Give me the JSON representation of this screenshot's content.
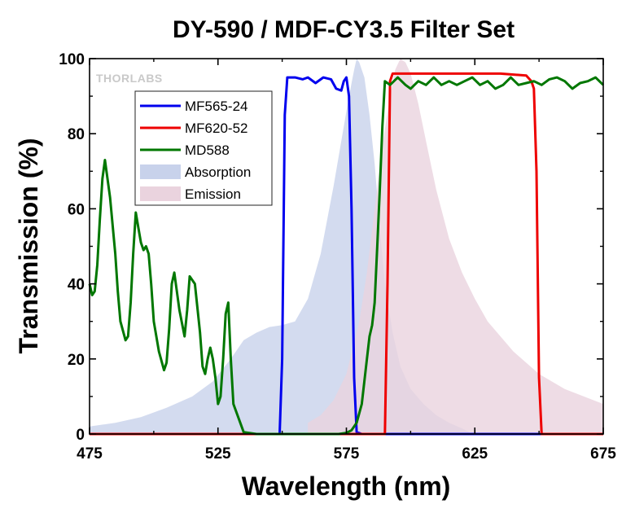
{
  "chart_data": {
    "type": "line",
    "title": "DY-590 / MDF-CY3.5 Filter Set",
    "xlabel": "Wavelength (nm)",
    "ylabel": "Transmission (%)",
    "xlim": [
      475,
      675
    ],
    "ylim": [
      0,
      100
    ],
    "xticks": [
      475,
      525,
      575,
      625,
      675
    ],
    "xtick_labels": [
      "475",
      "525",
      "575",
      "625",
      "675"
    ],
    "yticks": [
      0,
      20,
      40,
      60,
      80,
      100
    ],
    "ytick_labels": [
      "0",
      "20",
      "40",
      "60",
      "80",
      "100"
    ],
    "grid": false,
    "legend_position": "upper-left",
    "logo": "THORLABS",
    "series": [
      {
        "name": "MF565-24",
        "kind": "line",
        "color": "#0000ee",
        "x": [
          475,
          549,
          550,
          551,
          552,
          555,
          558,
          560,
          563,
          566,
          569,
          571,
          573,
          574,
          575,
          576,
          577,
          578,
          579,
          581,
          675
        ],
        "y": [
          0,
          0,
          20,
          85,
          95,
          95,
          94.5,
          95,
          93.5,
          95,
          94.5,
          92,
          91.5,
          94,
          95,
          90,
          60,
          15,
          0.5,
          0,
          0
        ]
      },
      {
        "name": "MF620-52",
        "kind": "line",
        "color": "#ee0000",
        "x": [
          475,
          590,
          591,
          592,
          593,
          595,
          605,
          615,
          625,
          635,
          645,
          647,
          648,
          649,
          650,
          651,
          675
        ],
        "y": [
          0,
          0,
          40,
          94,
          96,
          96,
          96,
          96,
          96,
          96,
          95.5,
          94,
          92,
          70,
          15,
          0,
          0
        ]
      },
      {
        "name": "MD588",
        "kind": "line",
        "color": "#007700",
        "x": [
          475,
          476,
          477,
          478,
          479,
          480,
          481,
          483,
          485,
          486,
          487,
          489,
          490,
          491,
          492,
          493,
          494,
          495,
          496,
          497,
          498,
          499,
          500,
          502,
          504,
          505,
          506,
          507,
          508,
          510,
          512,
          513,
          514,
          516,
          518,
          519,
          520,
          521,
          522,
          523,
          524,
          525,
          526,
          527,
          528,
          529,
          530,
          531,
          535,
          540,
          550,
          565,
          572,
          575,
          577,
          579,
          581,
          583,
          584,
          585,
          586,
          587,
          588,
          589,
          590,
          592,
          595,
          598,
          600,
          603,
          606,
          609,
          612,
          615,
          618,
          621,
          624,
          627,
          630,
          633,
          636,
          639,
          642,
          645,
          648,
          651,
          654,
          657,
          660,
          663,
          666,
          669,
          672,
          675
        ],
        "y": [
          40,
          37,
          38,
          45,
          57,
          68,
          73,
          63,
          48,
          38,
          30,
          25,
          26,
          35,
          48,
          59,
          55,
          51,
          49,
          50,
          48,
          40,
          30,
          22,
          17,
          19,
          28,
          40,
          43,
          33,
          26,
          33,
          42,
          40,
          27,
          18,
          16,
          20,
          23,
          20,
          15,
          8,
          10,
          20,
          32,
          35,
          20,
          8,
          0.5,
          0,
          0,
          0,
          0,
          0.3,
          1,
          3,
          8,
          20,
          26,
          29,
          35,
          50,
          65,
          82,
          94,
          93,
          95,
          93,
          92,
          94,
          93,
          95,
          93,
          94,
          93,
          94,
          95,
          93,
          94,
          92,
          93,
          95,
          93,
          93.5,
          94,
          93,
          94.5,
          95,
          94,
          92,
          93.5,
          94,
          95,
          93
        ]
      },
      {
        "name": "Absorption",
        "kind": "area",
        "color": "#c8d2eb",
        "x": [
          475,
          485,
          495,
          505,
          515,
          523,
          530,
          535,
          540,
          545,
          550,
          555,
          560,
          565,
          570,
          573,
          576,
          578,
          579,
          580,
          582,
          584,
          586,
          588,
          590,
          593,
          596,
          600,
          605,
          610,
          615,
          620,
          623
        ],
        "y": [
          2,
          3,
          4.5,
          7,
          10,
          14,
          20,
          25,
          27,
          28.5,
          29,
          30,
          36,
          48,
          66,
          78,
          90,
          97,
          100,
          99,
          95,
          85,
          72,
          55,
          40,
          27,
          18,
          12,
          8,
          5,
          3,
          1.5,
          0.5
        ]
      },
      {
        "name": "Emission",
        "kind": "area",
        "color": "#ead3de",
        "x": [
          560,
          565,
          570,
          575,
          580,
          583,
          586,
          589,
          592,
          594,
          596,
          598,
          600,
          603,
          606,
          610,
          615,
          620,
          625,
          630,
          640,
          650,
          660,
          675
        ],
        "y": [
          3,
          5,
          9,
          16,
          30,
          43,
          60,
          77,
          90,
          97,
          100,
          99,
          96,
          88,
          78,
          65,
          52,
          43,
          36,
          30,
          22,
          16,
          12,
          8
        ]
      }
    ]
  }
}
